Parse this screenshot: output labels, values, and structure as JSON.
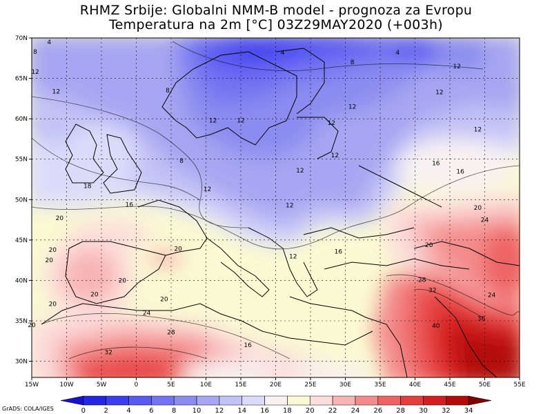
{
  "header": {
    "title_line1": "RHMZ Srbije: Globalni NMM-B model - prognoza za Evropu",
    "title_line2": "Temperatura na 2m [°C] 03Z29MAY2020 (+003h)"
  },
  "credit": "GrADS: COLA/IGES",
  "axes": {
    "lat_labels": [
      "70N",
      "65N",
      "60N",
      "55N",
      "50N",
      "45N",
      "40N",
      "35N",
      "30N"
    ],
    "lon_labels": [
      "15W",
      "10W",
      "5W",
      "0",
      "5E",
      "10E",
      "15E",
      "20E",
      "25E",
      "30E",
      "35E",
      "40E",
      "45E",
      "50E",
      "55E"
    ]
  },
  "colorbar": {
    "labels": [
      "0",
      "2",
      "4",
      "6",
      "8",
      "10",
      "12",
      "14",
      "16",
      "18",
      "20",
      "22",
      "24",
      "26",
      "28",
      "30",
      "32",
      "34"
    ],
    "colors": [
      "#1a0fd0",
      "#2424e6",
      "#3c3cf0",
      "#5a5af2",
      "#7474f2",
      "#8c8cf0",
      "#a6a6f2",
      "#c2c2f6",
      "#dcdcfa",
      "#f8f2f2",
      "#fafad2",
      "#fcdcdc",
      "#f8b4b4",
      "#f48c8c",
      "#ee6464",
      "#e63c3c",
      "#d21e1e",
      "#b40a0a",
      "#820000"
    ]
  },
  "contour_labels": [
    {
      "t": "4",
      "lon": -12.5,
      "lat": 69.5
    },
    {
      "t": "8",
      "lon": -14.5,
      "lat": 68.3
    },
    {
      "t": "12",
      "lon": -14.5,
      "lat": 65.8
    },
    {
      "t": "12",
      "lon": -11.5,
      "lat": 63.4
    },
    {
      "t": "8",
      "lon": 4.5,
      "lat": 63.5
    },
    {
      "t": "4",
      "lon": 21,
      "lat": 68.2
    },
    {
      "t": "4",
      "lon": 37.5,
      "lat": 68.2
    },
    {
      "t": "8",
      "lon": 31,
      "lat": 67.0
    },
    {
      "t": "12",
      "lon": 46,
      "lat": 66.5
    },
    {
      "t": "12",
      "lon": 43.5,
      "lat": 63.3
    },
    {
      "t": "12",
      "lon": 31,
      "lat": 61.5
    },
    {
      "t": "12",
      "lon": 15,
      "lat": 59.8
    },
    {
      "t": "12",
      "lon": 11,
      "lat": 59.8
    },
    {
      "t": "12",
      "lon": 28,
      "lat": 59.5
    },
    {
      "t": "12",
      "lon": 49,
      "lat": 58.7
    },
    {
      "t": "8",
      "lon": 6.5,
      "lat": 54.8
    },
    {
      "t": "12",
      "lon": 28.5,
      "lat": 55.5
    },
    {
      "t": "16",
      "lon": 43,
      "lat": 54.5
    },
    {
      "t": "16",
      "lon": 46.5,
      "lat": 53.5
    },
    {
      "t": "18",
      "lon": -7,
      "lat": 51.7
    },
    {
      "t": "12",
      "lon": 10.2,
      "lat": 51.3
    },
    {
      "t": "12",
      "lon": 23.5,
      "lat": 53.6
    },
    {
      "t": "16",
      "lon": -1,
      "lat": 49.4
    },
    {
      "t": "12",
      "lon": 22,
      "lat": 49.3
    },
    {
      "t": "20",
      "lon": -11,
      "lat": 47.7
    },
    {
      "t": "20",
      "lon": 49,
      "lat": 49.0
    },
    {
      "t": "24",
      "lon": 50,
      "lat": 47.5
    },
    {
      "t": "20",
      "lon": 6,
      "lat": 43.9
    },
    {
      "t": "20",
      "lon": -12,
      "lat": 43.8
    },
    {
      "t": "20",
      "lon": -12.5,
      "lat": 42.5
    },
    {
      "t": "12",
      "lon": 22.5,
      "lat": 43.0
    },
    {
      "t": "16",
      "lon": 29,
      "lat": 43.6
    },
    {
      "t": "20",
      "lon": 42,
      "lat": 44.4
    },
    {
      "t": "20",
      "lon": -2,
      "lat": 40.0
    },
    {
      "t": "20",
      "lon": -6,
      "lat": 38.3
    },
    {
      "t": "20",
      "lon": -12,
      "lat": 37.1
    },
    {
      "t": "28",
      "lon": 41,
      "lat": 40.1
    },
    {
      "t": "32",
      "lon": 42.5,
      "lat": 38.8
    },
    {
      "t": "24",
      "lon": 51,
      "lat": 38.2
    },
    {
      "t": "20",
      "lon": 4,
      "lat": 37.7
    },
    {
      "t": "24",
      "lon": 1.5,
      "lat": 36.0
    },
    {
      "t": "20",
      "lon": -15,
      "lat": 34.5
    },
    {
      "t": "36",
      "lon": 49.5,
      "lat": 35.3
    },
    {
      "t": "40",
      "lon": 43,
      "lat": 34.4
    },
    {
      "t": "28",
      "lon": 5,
      "lat": 33.6
    },
    {
      "t": "16",
      "lon": 16,
      "lat": 32.0
    },
    {
      "t": "32",
      "lon": -4,
      "lat": 31.1
    }
  ]
}
